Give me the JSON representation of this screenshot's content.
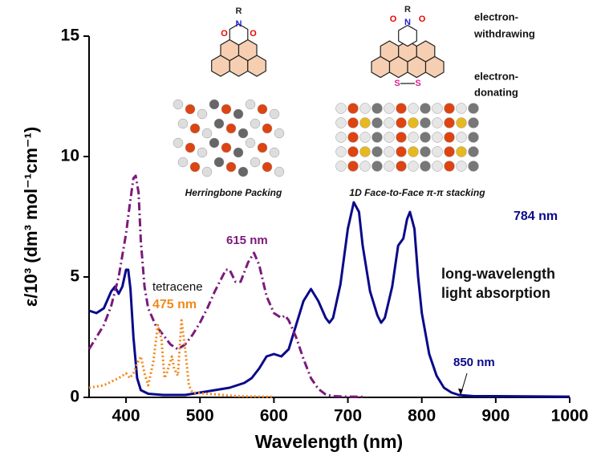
{
  "chart_data": {
    "type": "line",
    "xlabel": "Wavelength (nm)",
    "ylabel": "ε/10³ (dm³ mol⁻¹cm⁻¹)",
    "xlim": [
      350,
      1000
    ],
    "xticks": [
      400,
      500,
      600,
      700,
      800,
      900,
      1000
    ],
    "ylim": [
      0,
      15
    ],
    "yticks": [
      0,
      5,
      10,
      15
    ],
    "series": [
      {
        "color": "#0a0a8a",
        "dash": "solid",
        "x": [
          350,
          360,
          370,
          380,
          385,
          390,
          395,
          400,
          403,
          406,
          410,
          415,
          420,
          430,
          450,
          480,
          500,
          520,
          540,
          560,
          570,
          580,
          590,
          600,
          610,
          620,
          630,
          640,
          650,
          660,
          670,
          675,
          680,
          690,
          700,
          708,
          715,
          720,
          730,
          740,
          745,
          750,
          760,
          768,
          775,
          780,
          784,
          790,
          795,
          800,
          810,
          820,
          830,
          840,
          850,
          870,
          900,
          1000
        ],
        "values": [
          3.6,
          3.5,
          3.7,
          4.4,
          4.6,
          4.3,
          4.6,
          5.3,
          5.3,
          4.5,
          2.5,
          0.8,
          0.3,
          0.15,
          0.1,
          0.1,
          0.2,
          0.3,
          0.4,
          0.6,
          0.8,
          1.2,
          1.7,
          1.8,
          1.7,
          2.0,
          3.0,
          4.0,
          4.5,
          4.0,
          3.3,
          3.1,
          3.3,
          4.7,
          7.0,
          8.1,
          7.7,
          6.3,
          4.4,
          3.4,
          3.1,
          3.3,
          4.6,
          6.3,
          6.6,
          7.4,
          7.7,
          7.0,
          5.0,
          3.5,
          1.8,
          0.9,
          0.4,
          0.2,
          0.1,
          0.05,
          0.05,
          0.03
        ]
      },
      {
        "color": "#7b1a7b",
        "dash": "dashdot",
        "x": [
          350,
          360,
          370,
          380,
          390,
          400,
          405,
          410,
          413,
          417,
          420,
          425,
          430,
          440,
          450,
          460,
          470,
          480,
          490,
          500,
          510,
          520,
          530,
          535,
          540,
          548,
          555,
          565,
          573,
          580,
          590,
          600,
          610,
          615,
          620,
          630,
          640,
          650,
          660,
          670,
          680,
          700,
          720
        ],
        "values": [
          2.0,
          2.5,
          3.0,
          3.8,
          5.0,
          6.8,
          8.0,
          9.1,
          9.2,
          8.5,
          6.5,
          4.6,
          3.7,
          3.0,
          2.6,
          2.2,
          2.0,
          2.2,
          2.6,
          3.1,
          3.7,
          4.4,
          5.0,
          5.3,
          5.3,
          4.8,
          4.8,
          5.6,
          6.0,
          5.5,
          4.2,
          3.5,
          3.3,
          3.4,
          3.2,
          2.5,
          1.6,
          0.8,
          0.35,
          0.12,
          0.05,
          0.03,
          0.02
        ]
      },
      {
        "color": "#f08a1c",
        "dash": "dotted",
        "x": [
          350,
          370,
          390,
          400,
          405,
          410,
          415,
          420,
          425,
          430,
          437,
          443,
          448,
          452,
          455,
          462,
          465,
          470,
          475,
          480,
          485,
          490,
          510,
          550,
          600
        ],
        "values": [
          0.4,
          0.5,
          0.8,
          1.0,
          0.8,
          1.0,
          1.4,
          1.7,
          1.0,
          0.5,
          1.5,
          3.0,
          2.4,
          0.8,
          1.0,
          1.7,
          1.2,
          0.9,
          3.2,
          2.0,
          0.5,
          0.2,
          0.15,
          0.05,
          0.02
        ]
      }
    ],
    "annotations": {
      "purple_peak": "615 nm",
      "navy_peak": "784 nm",
      "tetracene": "tetracene",
      "tetracene_peak": "475 nm",
      "edge": "850 nm",
      "long1": "long-wavelength",
      "long2": "light absorption",
      "ew1": "electron-",
      "ew2": "withdrawing",
      "ed1": "electron-",
      "ed2": "donating",
      "cap1": "Herringbone Packing",
      "cap2": "1D Face-to-Face π-π stacking"
    },
    "structures": [
      {
        "atoms": [
          "R",
          "O",
          "N",
          "O"
        ]
      },
      {
        "atoms": [
          "R",
          "O",
          "N",
          "O",
          "S",
          "S"
        ]
      }
    ]
  }
}
